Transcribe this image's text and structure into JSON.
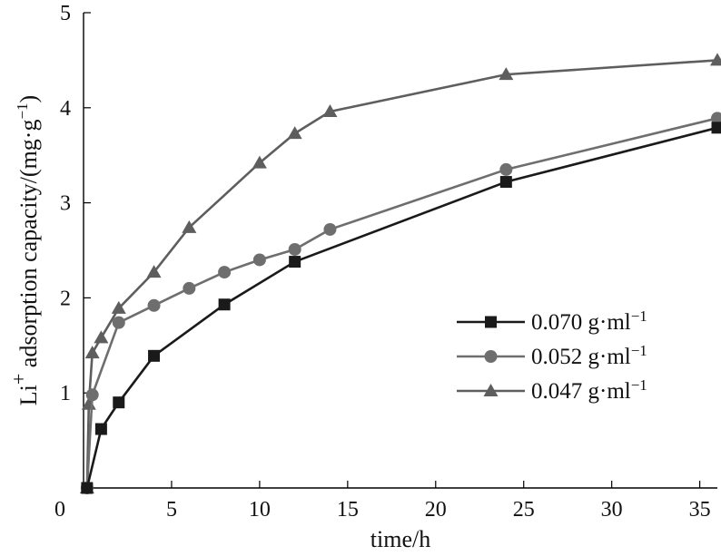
{
  "chart_data": {
    "type": "line",
    "title": "",
    "xlabel": "time/h",
    "ylabel": "Li+ adsorption capacity/(mg·g-1)",
    "ylabel_parts": {
      "base": "Li",
      "superscript": "+",
      "text": " adsorption capacity/(mg·g",
      "exponent": "−1",
      "close": ")"
    },
    "xlim": [
      0,
      36
    ],
    "ylim": [
      0,
      5
    ],
    "xticks": [
      5,
      10,
      15,
      20,
      25,
      30,
      35
    ],
    "yticks": [
      1,
      2,
      3,
      4,
      5
    ],
    "origin_label": "0",
    "legend_position": "center-right",
    "series": [
      {
        "name": "0.070 g·ml",
        "exponent": "−1",
        "marker": "square",
        "color": "#1a1a1a",
        "x": [
          0.2,
          1,
          2,
          4,
          8,
          12,
          24,
          36
        ],
        "y": [
          0.0,
          0.62,
          0.9,
          1.39,
          1.93,
          2.38,
          3.22,
          3.79
        ]
      },
      {
        "name": "0.052 g·ml",
        "exponent": "−1",
        "marker": "circle",
        "color": "#6e6e6e",
        "x": [
          0.2,
          0.5,
          2,
          4,
          6,
          8,
          10,
          12,
          14,
          24,
          36
        ],
        "y": [
          0.0,
          0.98,
          1.74,
          1.92,
          2.1,
          2.27,
          2.4,
          2.51,
          2.72,
          3.35,
          3.89
        ]
      },
      {
        "name": "0.047 g·ml",
        "exponent": "−1",
        "marker": "triangle",
        "color": "#5e5e5e",
        "x": [
          0.2,
          0.3,
          0.5,
          1,
          2,
          4,
          6,
          10,
          12,
          14,
          24,
          36
        ],
        "y": [
          0.0,
          0.88,
          1.42,
          1.58,
          1.89,
          2.27,
          2.74,
          3.42,
          3.73,
          3.96,
          4.35,
          4.5
        ]
      }
    ]
  }
}
